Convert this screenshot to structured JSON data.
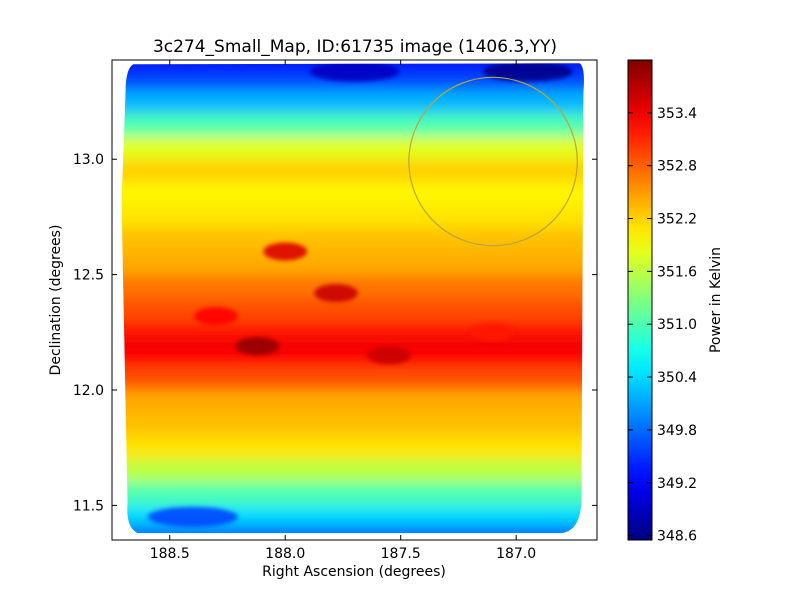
{
  "chart_data": {
    "type": "heatmap",
    "title": "3c274_Small_Map, ID:61735 image (1406.3,YY)",
    "xlabel": "Right Ascension (degrees)",
    "ylabel": "Declination (degrees)",
    "colorbar_label": "Power in Kelvin",
    "colormap": "jet",
    "xlim": [
      188.75,
      186.65
    ],
    "ylim": [
      11.35,
      13.43
    ],
    "clim": [
      348.55,
      354.0
    ],
    "x_ticks": [
      188.5,
      188.0,
      187.5,
      187.0
    ],
    "x_tick_labels": [
      "188.5",
      "188.0",
      "187.5",
      "187.0"
    ],
    "y_ticks": [
      11.5,
      12.0,
      12.5,
      13.0
    ],
    "y_tick_labels": [
      "11.5",
      "12.0",
      "12.5",
      "13.0"
    ],
    "colorbar_ticks": [
      348.6,
      349.2,
      349.8,
      350.4,
      351.0,
      351.6,
      352.2,
      352.8,
      353.4
    ],
    "colorbar_tick_labels": [
      "348.6",
      "349.2",
      "349.8",
      "350.4",
      "351.0",
      "351.6",
      "352.2",
      "352.8",
      "353.4"
    ],
    "data_extent": {
      "ra": [
        188.7,
        186.7
      ],
      "dec": [
        11.38,
        13.42
      ]
    },
    "dec_profile": {
      "dec": [
        11.38,
        11.45,
        11.55,
        11.65,
        11.75,
        11.85,
        11.95,
        12.05,
        12.15,
        12.2,
        12.25,
        12.35,
        12.45,
        12.55,
        12.65,
        12.75,
        12.85,
        12.95,
        13.05,
        13.15,
        13.25,
        13.35,
        13.42
      ],
      "power": [
        349.8,
        350.4,
        351.0,
        351.6,
        352.1,
        352.3,
        352.4,
        352.9,
        353.3,
        353.4,
        353.2,
        352.9,
        352.7,
        352.4,
        352.3,
        352.1,
        352.0,
        352.2,
        351.8,
        351.0,
        350.2,
        349.6,
        349.2
      ]
    },
    "features": [
      {
        "kind": "hotspot",
        "ra": 188.12,
        "dec": 12.19,
        "power": 353.9
      },
      {
        "kind": "hotspot",
        "ra": 187.78,
        "dec": 12.42,
        "power": 353.6
      },
      {
        "kind": "hotspot",
        "ra": 187.55,
        "dec": 12.15,
        "power": 353.6
      },
      {
        "kind": "hotspot",
        "ra": 188.0,
        "dec": 12.6,
        "power": 353.5
      },
      {
        "kind": "hotspot",
        "ra": 188.3,
        "dec": 12.32,
        "power": 353.3
      },
      {
        "kind": "hotspot",
        "ra": 187.1,
        "dec": 12.25,
        "power": 353.2
      },
      {
        "kind": "coldspot",
        "ra": 186.95,
        "dec": 13.38,
        "power": 348.6
      },
      {
        "kind": "coldspot",
        "ra": 187.7,
        "dec": 13.38,
        "power": 348.9
      },
      {
        "kind": "coldspot",
        "ra": 188.4,
        "dec": 11.45,
        "power": 349.6
      }
    ],
    "circle": {
      "ra": 187.1,
      "dec": 12.99,
      "radius_deg": 0.365,
      "color": "#b8a63a"
    }
  }
}
